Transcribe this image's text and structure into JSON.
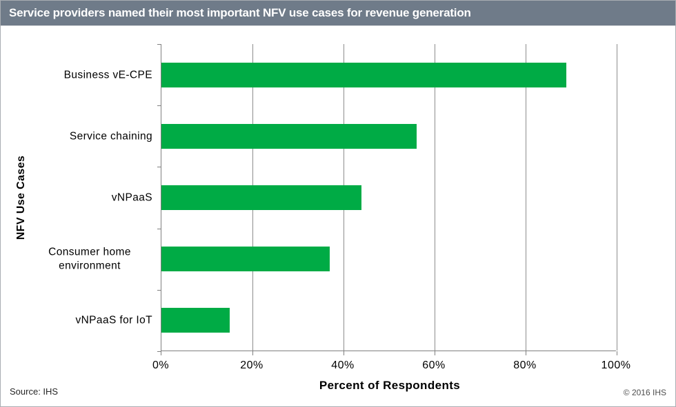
{
  "header": {
    "title": "Service providers named their most important NFV use cases for revenue generation"
  },
  "chart_data": {
    "type": "bar",
    "orientation": "horizontal",
    "title": "Service providers named their most important NFV use cases for revenue generation",
    "categories": [
      "Business vE-CPE",
      "Service chaining",
      "vNPaaS",
      "Consumer home environment",
      "vNPaaS for IoT"
    ],
    "values": [
      89,
      56,
      44,
      37,
      15
    ],
    "xlabel": "Percent of Respondents",
    "ylabel": "NFV Use Cases",
    "xlim": [
      0,
      100
    ],
    "xtick_labels": [
      "0%",
      "20%",
      "40%",
      "60%",
      "80%",
      "100%"
    ],
    "xtick_values": [
      0,
      20,
      40,
      60,
      80,
      100
    ],
    "grid": true,
    "legend": false
  },
  "footer": {
    "source": "Source: IHS",
    "copyright": "© 2016 IHS"
  },
  "colors": {
    "title_bar_bg": "#6f7b89",
    "title_text": "#ffffff",
    "bar_fill": "#00ab45",
    "gridline": "#8c8c8c",
    "axis_line": "#7f7f7f"
  }
}
